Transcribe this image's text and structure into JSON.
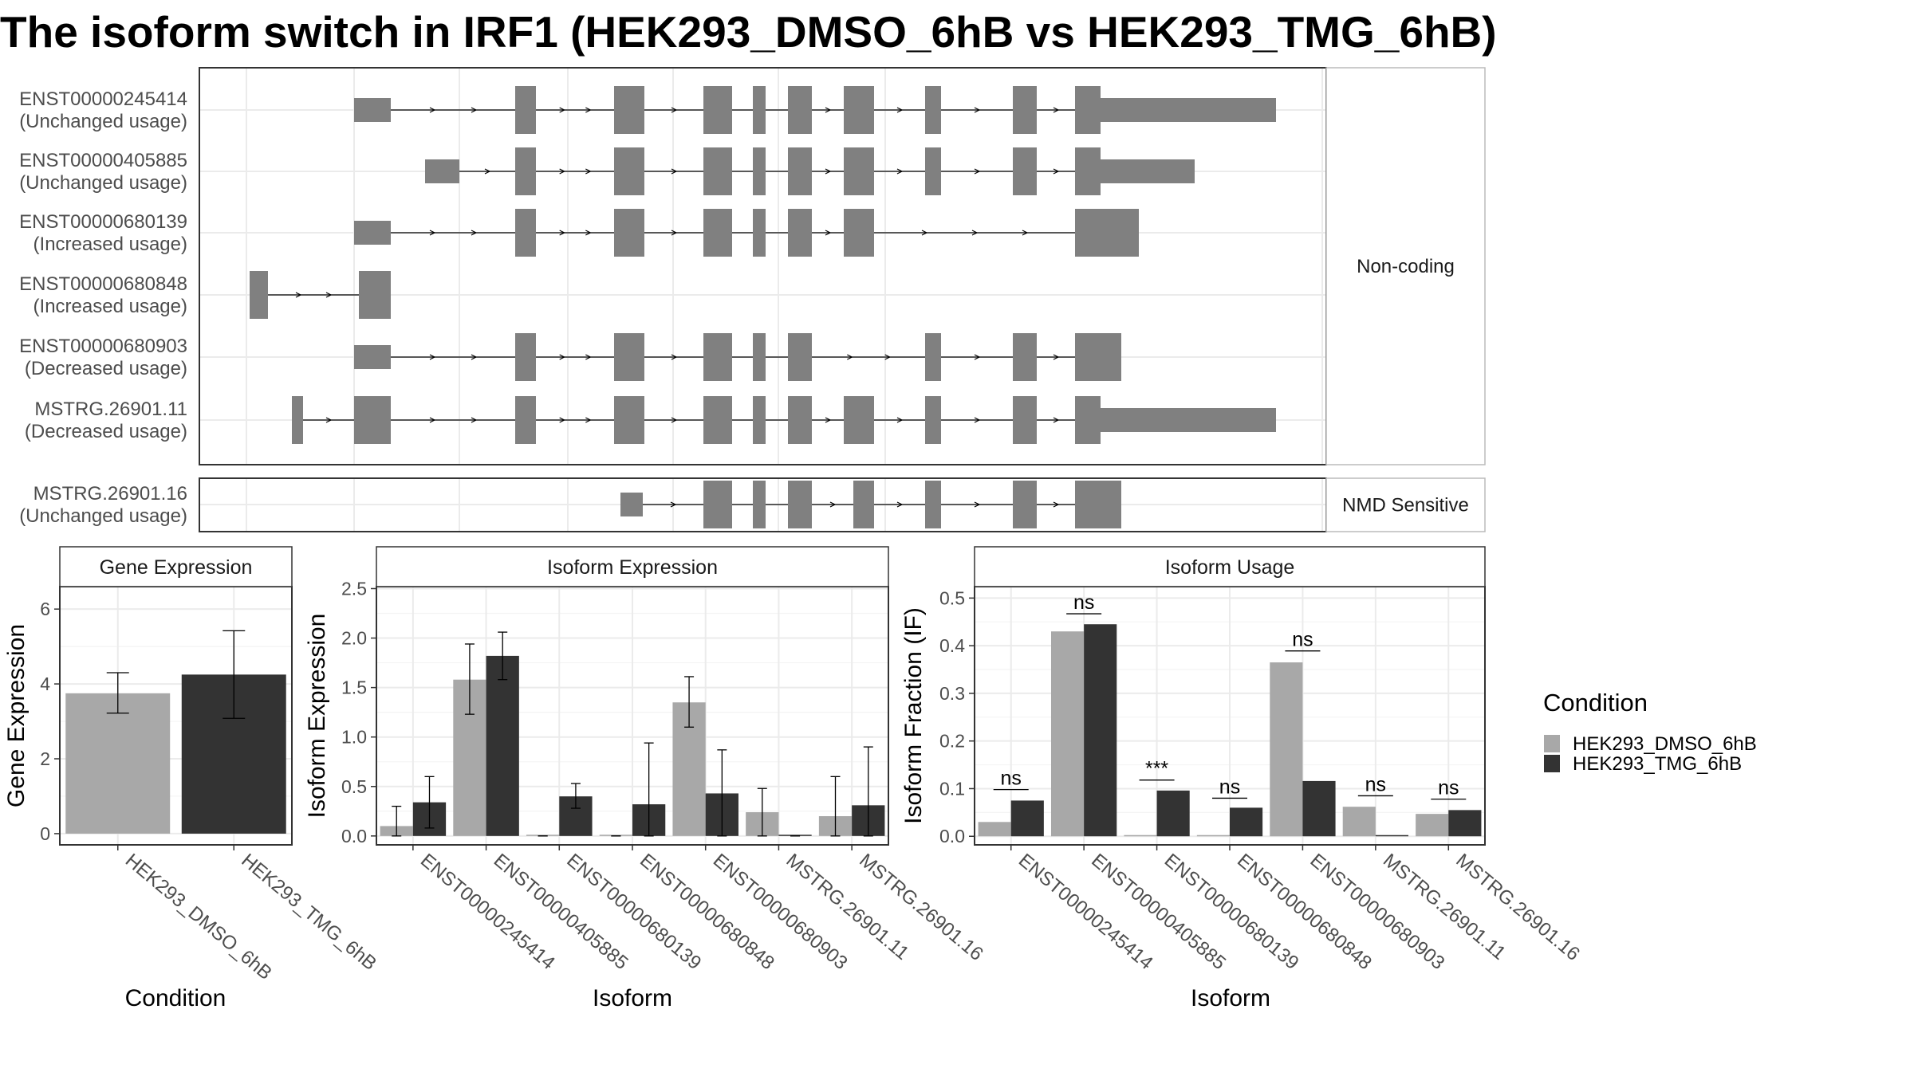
{
  "title": "The isoform switch in IRF1 (HEK293_DMSO_6hB vs HEK293_TMG_6hB)",
  "colors": {
    "dmso": "#a8a8a8",
    "tmg": "#333333",
    "exon": "#808080",
    "grid": "#ebebeb",
    "strip": "#f2f2f2"
  },
  "structure": {
    "groups": [
      {
        "name": "Non-coding",
        "transcripts": [
          {
            "id": "ENST00000245414",
            "status": "(Unchanged usage)"
          },
          {
            "id": "ENST00000405885",
            "status": "(Unchanged usage)"
          },
          {
            "id": "ENST00000680139",
            "status": "(Increased usage)"
          },
          {
            "id": "ENST00000680848",
            "status": "(Increased usage)"
          },
          {
            "id": "ENST00000680903",
            "status": "(Decreased usage)"
          },
          {
            "id": "MSTRG.26901.11",
            "status": "(Decreased usage)"
          }
        ]
      },
      {
        "name": "NMD Sensitive",
        "transcripts": [
          {
            "id": "MSTRG.26901.16",
            "status": "(Unchanged usage)"
          }
        ]
      }
    ]
  },
  "legend": {
    "title": "Condition",
    "entries": [
      "HEK293_DMSO_6hB",
      "HEK293_TMG_6hB"
    ]
  },
  "chart_data": [
    {
      "type": "bar",
      "panel_title": "Gene Expression",
      "xlabel": "Condition",
      "ylabel": "Gene Expression",
      "ylim": [
        -0.3,
        6.6
      ],
      "yticks": [
        0,
        2,
        4,
        6
      ],
      "categories": [
        "HEK293_DMSO_6hB",
        "HEK293_TMG_6hB"
      ],
      "values": [
        3.75,
        4.25
      ],
      "error_low": [
        3.22,
        3.08
      ],
      "error_high": [
        4.3,
        5.42
      ]
    },
    {
      "type": "bar",
      "panel_title": "Isoform Expression",
      "xlabel": "Isoform",
      "ylabel": "Isoform Expression",
      "ylim": [
        -0.09,
        2.52
      ],
      "yticks": [
        0.0,
        0.5,
        1.0,
        1.5,
        2.0,
        2.5
      ],
      "ytick_labels": [
        "0.0",
        "0.5",
        "1.0",
        "1.5",
        "2.0",
        "2.5"
      ],
      "categories": [
        "ENST00000245414",
        "ENST00000405885",
        "ENST00000680139",
        "ENST00000680848",
        "ENST00000680903",
        "MSTRG.26901.11",
        "MSTRG.26901.16"
      ],
      "series": [
        {
          "name": "HEK293_DMSO_6hB",
          "values": [
            0.1,
            1.58,
            0.0,
            0.0,
            1.35,
            0.24,
            0.2
          ],
          "error_low": [
            0.0,
            1.23,
            0.0,
            0.0,
            1.1,
            0.0,
            0.0
          ],
          "error_high": [
            0.3,
            1.94,
            0.0,
            0.0,
            1.61,
            0.48,
            0.6
          ]
        },
        {
          "name": "HEK293_TMG_6hB",
          "values": [
            0.34,
            1.82,
            0.4,
            0.32,
            0.43,
            0.0,
            0.31
          ],
          "error_low": [
            0.08,
            1.58,
            0.28,
            0.0,
            0.0,
            0.0,
            0.0
          ],
          "error_high": [
            0.6,
            2.06,
            0.53,
            0.94,
            0.87,
            0.0,
            0.9
          ]
        }
      ]
    },
    {
      "type": "bar",
      "panel_title": "Isoform Usage",
      "xlabel": "Isoform",
      "ylabel": "Isoform Fraction (IF)",
      "ylim": [
        -0.018,
        0.524
      ],
      "yticks": [
        0.0,
        0.1,
        0.2,
        0.3,
        0.4,
        0.5
      ],
      "ytick_labels": [
        "0.0",
        "0.1",
        "0.2",
        "0.3",
        "0.4",
        "0.5"
      ],
      "categories": [
        "ENST00000245414",
        "ENST00000405885",
        "ENST00000680139",
        "ENST00000680848",
        "ENST00000680903",
        "MSTRG.26901.11",
        "MSTRG.26901.16"
      ],
      "series": [
        {
          "name": "HEK293_DMSO_6hB",
          "values": [
            0.03,
            0.43,
            0.0,
            0.0,
            0.365,
            0.062,
            0.047
          ]
        },
        {
          "name": "HEK293_TMG_6hB",
          "values": [
            0.075,
            0.445,
            0.096,
            0.06,
            0.116,
            0.0,
            0.055
          ]
        }
      ],
      "significance": [
        {
          "label": "ns",
          "y": 0.098
        },
        {
          "label": "ns",
          "y": 0.467
        },
        {
          "label": "***",
          "y": 0.118
        },
        {
          "label": "ns",
          "y": 0.08
        },
        {
          "label": "ns",
          "y": 0.389
        },
        {
          "label": "ns",
          "y": 0.085
        },
        {
          "label": "ns",
          "y": 0.078
        }
      ]
    }
  ]
}
